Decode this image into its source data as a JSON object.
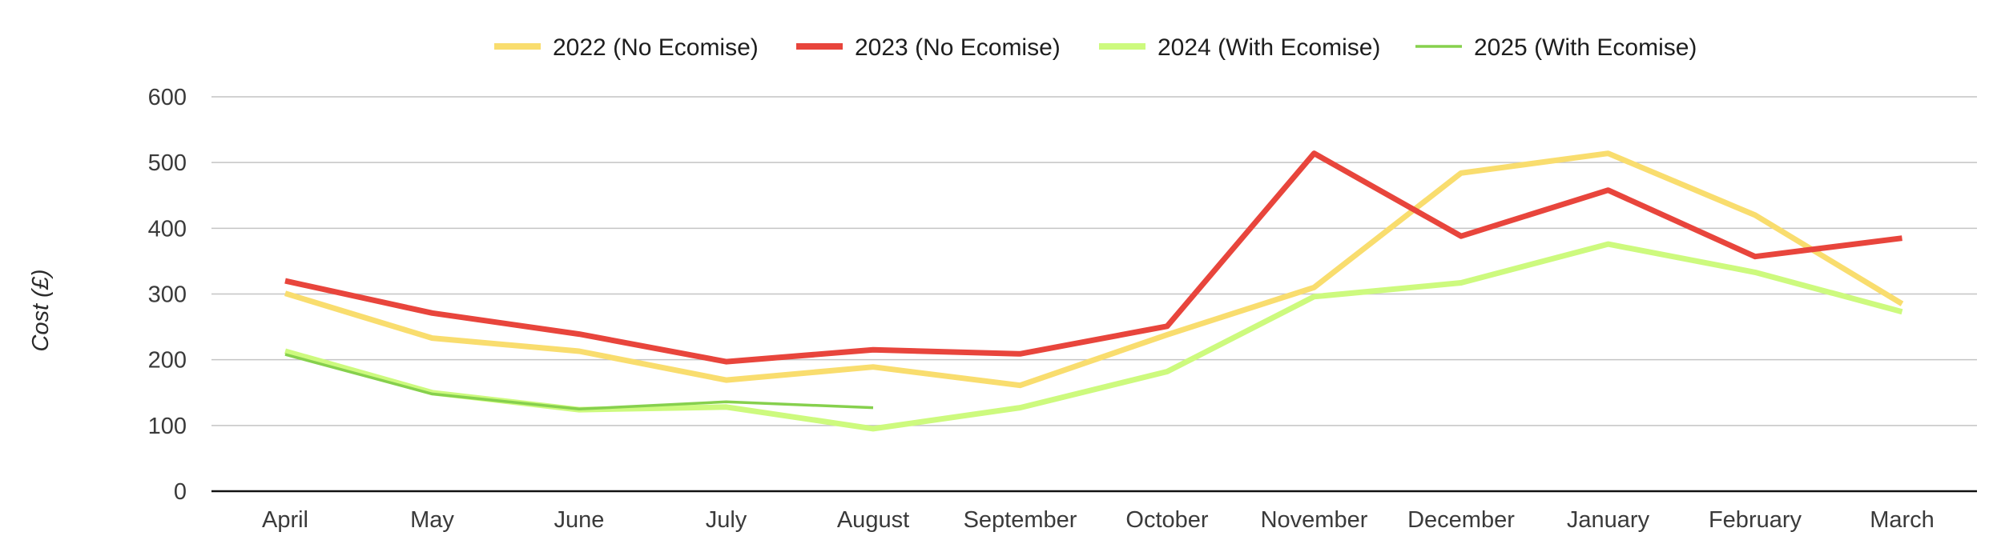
{
  "chart_data": {
    "type": "line",
    "title": "",
    "xlabel": "",
    "ylabel": "Cost (£)",
    "categories": [
      "April",
      "May",
      "June",
      "July",
      "August",
      "September",
      "October",
      "November",
      "December",
      "January",
      "February",
      "March"
    ],
    "ylim": [
      0,
      600
    ],
    "yticks": [
      0,
      100,
      200,
      300,
      400,
      500,
      600
    ],
    "grid": true,
    "legend_position": "top-center",
    "series": [
      {
        "name": "2022 (No Ecomise)",
        "color": "#F9DD6E",
        "values": [
          301,
          233,
          213,
          169,
          189,
          161,
          238,
          310,
          484,
          514,
          420,
          285
        ]
      },
      {
        "name": "2023 (No Ecomise)",
        "color": "#E8453C",
        "values": [
          320,
          271,
          239,
          197,
          215,
          209,
          251,
          514,
          388,
          458,
          357,
          385
        ]
      },
      {
        "name": "2024 (With Ecomise)",
        "color": "#CDFA7E",
        "values": [
          213,
          150,
          124,
          128,
          95,
          127,
          182,
          296,
          317,
          376,
          333,
          273
        ]
      },
      {
        "name": "2025 (With Ecomise)",
        "color": "#86D04D",
        "values": [
          208,
          148,
          125,
          136,
          127,
          null,
          null,
          null,
          null,
          null,
          null,
          null
        ]
      }
    ]
  }
}
